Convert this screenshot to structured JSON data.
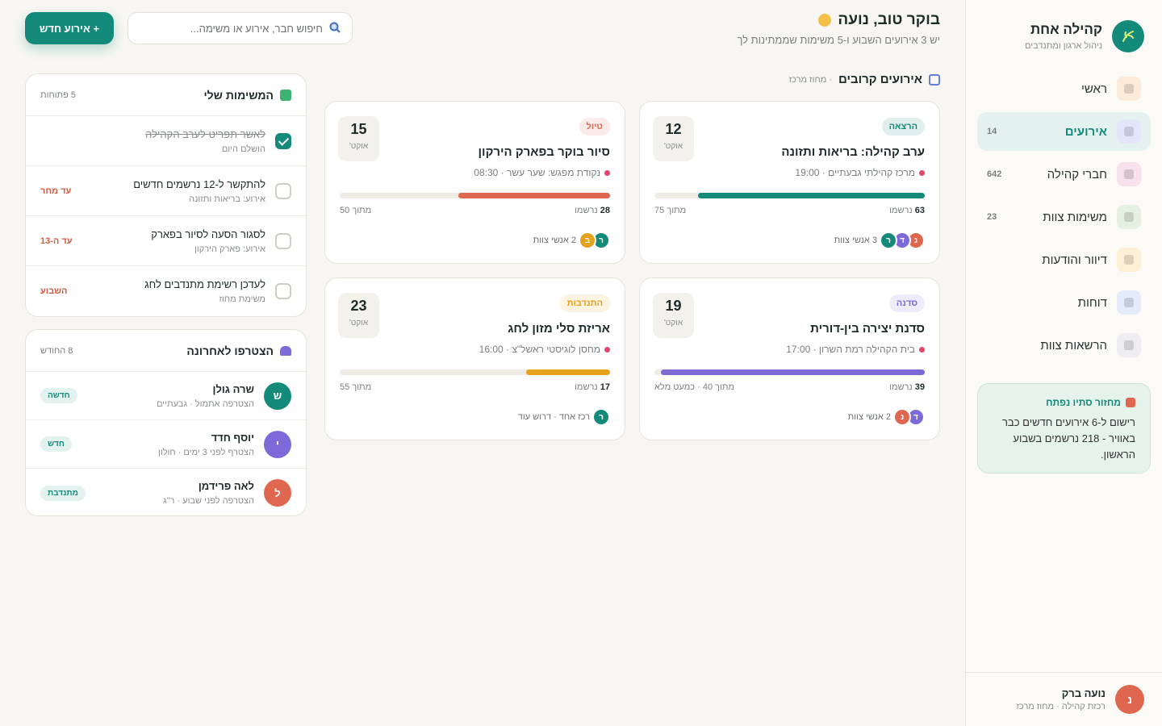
{
  "sidebar": {
    "brand": "קהילה אחת",
    "tagline": "ניהול ארגון ומתנדבים",
    "nav": [
      {
        "label": "ראשי",
        "icon": "#fdebd9"
      },
      {
        "label": "אירועים",
        "count": 14,
        "active": true,
        "icon": "#e3e6fb"
      },
      {
        "label": "חברי קהילה",
        "count": 642,
        "icon": "#f6e1ec"
      },
      {
        "label": "משימות צוות",
        "count": 23,
        "icon": "#e4f1e2"
      },
      {
        "label": "דיוור והודעות",
        "icon": "#fdf0d6"
      },
      {
        "label": "דוחות",
        "icon": "#e3ecfb"
      },
      {
        "label": "הרשאות צוות",
        "icon": "#eeeef2"
      }
    ],
    "promo": {
      "title": "מחזור סתיו נפתח",
      "text": "רישום ל-6 אירועים חדשים כבר באוויר - 218 נרשמים בשבוע הראשון."
    },
    "user": {
      "initial": "נ",
      "name": "נועה ברק",
      "role": "רכזת קהילה · מחוז מרכז"
    }
  },
  "header": {
    "greeting": "בוקר טוב, נועה",
    "subtitle": "יש 3 אירועים השבוע ו-5 משימות שממתינות לך",
    "search_placeholder": "חיפוש חבר, אירוע או משימה...",
    "new_button": "+ אירוע חדש"
  },
  "events": {
    "title": "אירועים קרובים",
    "scope": "· מחוז מרכז",
    "items": [
      {
        "tag": "הרצאה",
        "color": "#138a7a",
        "day": 12,
        "month": "אוקט'",
        "title": "ערב קהילה: בריאות ותזונה",
        "place": "מרכז קהילתי גבעתיים · 19:00",
        "registered": 63,
        "registered_label": "נרשמו",
        "capacity_prefix": "מתוך",
        "capacity": 75,
        "team": [
          {
            "initial": "נ",
            "color": "#e0674f"
          },
          {
            "initial": "ד",
            "color": "#7d6ad8"
          },
          {
            "initial": "ר",
            "color": "#138a7a"
          }
        ],
        "team_label": "3 אנשי צוות"
      },
      {
        "tag": "טיול",
        "color": "#e0674f",
        "day": 15,
        "month": "אוקט'",
        "title": "סיור בוקר בפארק הירקון",
        "place": "נקודת מפגש: שער עשר · 08:30",
        "registered": 28,
        "registered_label": "נרשמו",
        "capacity_prefix": "מתוך",
        "capacity": 50,
        "team": [
          {
            "initial": "ר",
            "color": "#138a7a"
          },
          {
            "initial": "ב",
            "color": "#e7a21c"
          }
        ],
        "team_label": "2 אנשי צוות"
      },
      {
        "tag": "סדנה",
        "color": "#7d6ad8",
        "day": 19,
        "month": "אוקט'",
        "title": "סדנת יצירה בין-דורית",
        "place": "בית הקהילה רמת השרון · 17:00",
        "registered": 39,
        "registered_label": "נרשמו",
        "capacity_prefix": "מתוך",
        "capacity": 40,
        "capacity_note": "· כמעט מלא",
        "team": [
          {
            "initial": "ד",
            "color": "#7d6ad8"
          },
          {
            "initial": "נ",
            "color": "#e0674f"
          }
        ],
        "team_label": "2 אנשי צוות"
      },
      {
        "tag": "התנדבות",
        "color": "#e7a21c",
        "day": 23,
        "month": "אוקט'",
        "title": "אריזת סלי מזון לחג",
        "place": "מחסן לוגיסטי ראשל\"צ · 16:00",
        "registered": 17,
        "registered_label": "נרשמו",
        "capacity_prefix": "מתוך",
        "capacity": 55,
        "team": [
          {
            "initial": "ר",
            "color": "#138a7a"
          }
        ],
        "team_label": "רכז אחד · דרוש עוד"
      }
    ]
  },
  "tasks": {
    "title": "המשימות שלי",
    "count_label": "5 פתוחות",
    "items": [
      {
        "title": "לאשר תפריט לערב הקהילה",
        "sub": "הושלם היום",
        "done": true
      },
      {
        "title": "להתקשר ל-12 נרשמים חדשים",
        "sub": "אירוע: בריאות ותזונה",
        "due": "עד מחר"
      },
      {
        "title": "לסגור הסעה לסיור בפארק",
        "sub": "אירוע: פארק הירקון",
        "due": "עד ה-13"
      },
      {
        "title": "לעדכן רשימת מתנדבים לחג",
        "sub": "משימת מחוז",
        "due": "השבוע"
      }
    ]
  },
  "members": {
    "title": "הצטרפו לאחרונה",
    "count_label": "8 החודש",
    "items": [
      {
        "initial": "ש",
        "color": "#138a7a",
        "name": "שרה גולן",
        "sub": "הצטרפה אתמול · גבעתיים",
        "tag": "חדשה"
      },
      {
        "initial": "י",
        "color": "#7d6ad8",
        "name": "יוסף חדד",
        "sub": "הצטרף לפני 3 ימים · חולון",
        "tag": "חדש"
      },
      {
        "initial": "ל",
        "color": "#e0674f",
        "name": "לאה פרידמן",
        "sub": "הצטרפה לפני שבוע · ר\"ג",
        "tag": "מתנדבת"
      }
    ]
  }
}
